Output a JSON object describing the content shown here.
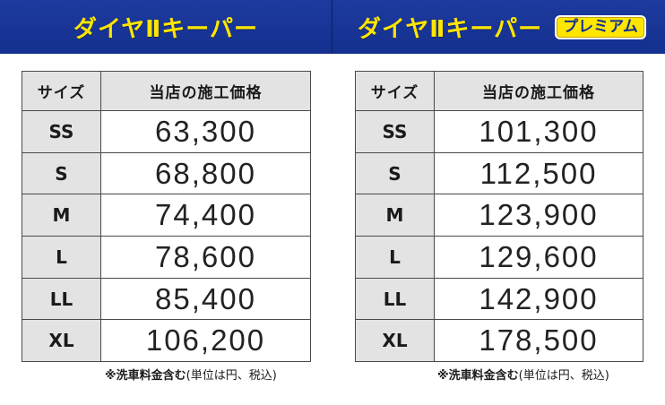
{
  "left": {
    "title": "ダイヤⅡキーパー",
    "table": {
      "headers": [
        "サイズ",
        "当店の施工価格"
      ],
      "rows": [
        {
          "size": "SS",
          "price": "63,300"
        },
        {
          "size": "S",
          "price": "68,800"
        },
        {
          "size": "M",
          "price": "74,400"
        },
        {
          "size": "L",
          "price": "78,600"
        },
        {
          "size": "LL",
          "price": "85,400"
        },
        {
          "size": "XL",
          "price": "106,200"
        }
      ]
    },
    "note": {
      "bold": "※洗車料金含む",
      "rest": "(単位は円、税込)"
    }
  },
  "right": {
    "title": "ダイヤⅡキーパー",
    "badge": "プレミアム",
    "table": {
      "headers": [
        "サイズ",
        "当店の施工価格"
      ],
      "rows": [
        {
          "size": "SS",
          "price": "101,300"
        },
        {
          "size": "S",
          "price": "112,500"
        },
        {
          "size": "M",
          "price": "123,900"
        },
        {
          "size": "L",
          "price": "129,600"
        },
        {
          "size": "LL",
          "price": "142,900"
        },
        {
          "size": "XL",
          "price": "178,500"
        }
      ]
    },
    "note": {
      "bold": "※洗車料金含む",
      "rest": "(単位は円、税込)"
    }
  },
  "colors": {
    "header_bg": "#13308f",
    "title_text": "#ffe600",
    "size_cell_bg": "#e3e3e3"
  }
}
